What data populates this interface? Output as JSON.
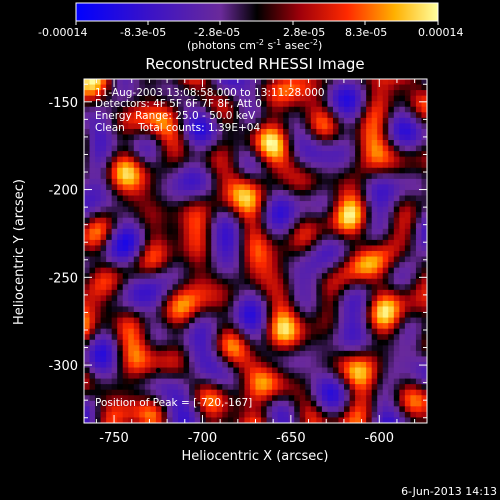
{
  "colorbar": {
    "tick_labels": [
      "-0.00014",
      "-8.3e-05",
      "-2.8e-05",
      "2.8e-05",
      "8.3e-05",
      "0.00014"
    ],
    "units_label": "(photons cm",
    "units_sup1": "-2",
    "units_mid": " s",
    "units_sup2": "-1",
    "units_end": " asec",
    "units_sup3": "-2",
    "units_close": ")"
  },
  "chart_data": {
    "type": "heatmap",
    "title": "Reconstructed RHESSI Image",
    "xlabel": "Heliocentric X (arcsec)",
    "ylabel": "Heliocentric Y (arcsec)",
    "xlim": [
      -767,
      -573
    ],
    "ylim": [
      -333,
      -137
    ],
    "x_ticks": [
      -750,
      -700,
      -650,
      -600
    ],
    "y_ticks": [
      -150,
      -200,
      -250,
      -300
    ],
    "colorscale_range": [
      -0.00014,
      0.00014
    ],
    "annotations": [
      "11-Aug-2003 13:08:58.000 to 13:11:28.000",
      "Detectors: 4F 5F 6F 7F 8F, Att 0",
      "Energy Range: 25.0 - 50.0 keV",
      "Clean    Total counts: 1.39E+04"
    ],
    "peak_label": "Position of Peak = [-720,-167]",
    "marker_position": [
      -725,
      -303
    ]
  },
  "footer": {
    "timestamp": "6-Jun-2013 14:13"
  }
}
